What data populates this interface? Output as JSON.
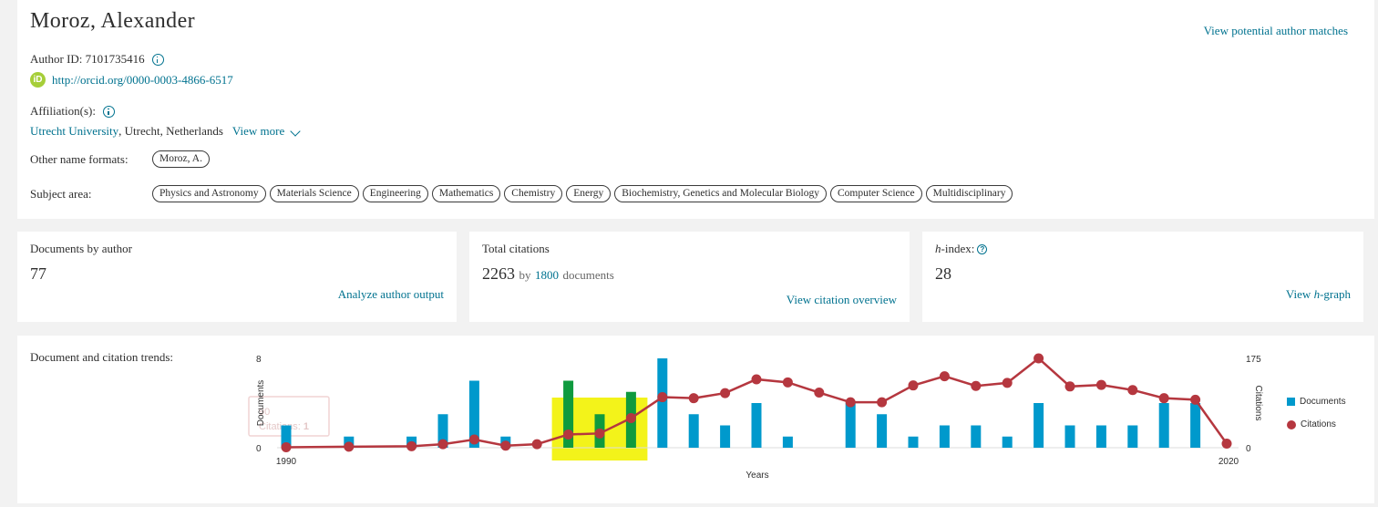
{
  "author": {
    "name": "Moroz, Alexander",
    "potential_matches_link": "View potential author matches",
    "author_id_label": "Author ID: 7101735416",
    "orcid_url": "http://orcid.org/0000-0003-4866-6517",
    "affiliation_label": "Affiliation(s):",
    "affiliation_institution": "Utrecht University",
    "affiliation_location": ", Utrecht, Netherlands",
    "view_more": "View more",
    "other_names_label": "Other name formats:",
    "other_names": [
      "Moroz, A."
    ],
    "subject_area_label": "Subject area:",
    "subject_areas": [
      "Physics and Astronomy",
      "Materials Science",
      "Engineering",
      "Mathematics",
      "Chemistry",
      "Energy",
      "Biochemistry, Genetics and Molecular Biology",
      "Computer Science",
      "Multidisciplinary"
    ]
  },
  "metrics": {
    "documents": {
      "label": "Documents by author",
      "value": "77",
      "link": "Analyze author output"
    },
    "citations": {
      "label": "Total citations",
      "value": "2263",
      "by": "by",
      "doc_count": "1800",
      "doc_word": "documents",
      "link": "View citation overview"
    },
    "hindex": {
      "label_italic": "h",
      "label_rest": "-index:",
      "help_icon": "question-icon",
      "value": "28",
      "link_prefix": "View ",
      "link_italic": "h",
      "link_rest": "-graph"
    }
  },
  "trends": {
    "label": "Document and citation trends:",
    "tooltip": {
      "line1": "90",
      "line2_label": "Citations: ",
      "line2_value": "1"
    }
  },
  "chart_data": {
    "type": "bar",
    "x": [
      1990,
      1991,
      1992,
      1993,
      1994,
      1995,
      1996,
      1997,
      1998,
      1999,
      2000,
      2001,
      2002,
      2003,
      2004,
      2005,
      2006,
      2007,
      2008,
      2009,
      2010,
      2011,
      2012,
      2013,
      2014,
      2015,
      2016,
      2017,
      2018,
      2019,
      2020
    ],
    "series": [
      {
        "name": "Documents",
        "kind": "bar",
        "axis": "left",
        "color": "#0099cc",
        "values": [
          2,
          0,
          1,
          0,
          1,
          3,
          6,
          1,
          0,
          6,
          3,
          5,
          8,
          3,
          2,
          4,
          1,
          0,
          4,
          3,
          1,
          2,
          2,
          1,
          4,
          2,
          2,
          2,
          4,
          4,
          0
        ]
      },
      {
        "name": "Citations",
        "kind": "line",
        "axis": "right",
        "color": "#b5373f",
        "values": [
          1,
          null,
          2,
          null,
          3,
          7,
          16,
          4,
          7,
          26,
          28,
          58,
          99,
          97,
          107,
          134,
          128,
          108,
          89,
          89,
          122,
          140,
          121,
          127,
          175,
          120,
          123,
          113,
          97,
          94,
          8
        ]
      }
    ],
    "xlabel": "Years",
    "ylabel_left": "Documents",
    "ylabel_right": "Citations",
    "left_ticks": [
      "8",
      "0"
    ],
    "right_ticks": [
      "175",
      "0"
    ],
    "x_ticks": [
      "1990",
      "2020"
    ],
    "ylim_left": [
      0,
      8
    ],
    "ylim_right": [
      0,
      175
    ],
    "highlight_years": [
      1999,
      2001
    ],
    "highlight_color": "#f3f31a",
    "legend": [
      "Documents",
      "Citations"
    ],
    "legend_position": "right"
  }
}
